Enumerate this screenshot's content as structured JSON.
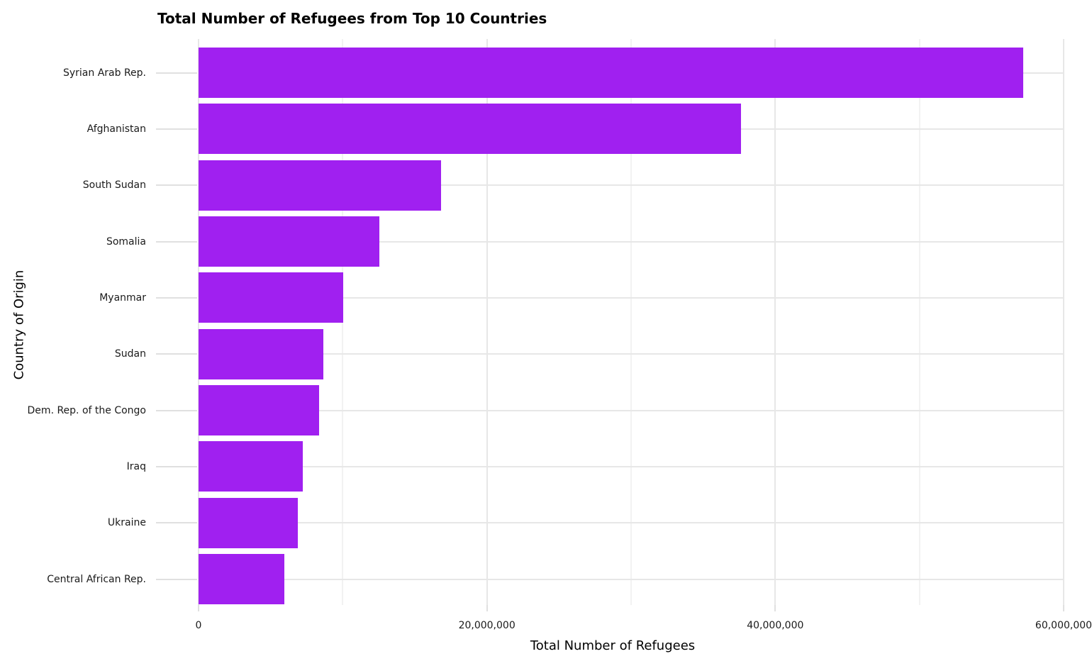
{
  "chart_data": {
    "type": "bar",
    "orientation": "horizontal",
    "title": "Total Number of Refugees from Top 10 Countries",
    "xlabel": "Total Number of Refugees",
    "ylabel": "Country of Origin",
    "categories": [
      "Syrian Arab Rep.",
      "Afghanistan",
      "South Sudan",
      "Somalia",
      "Myanmar",
      "Sudan",
      "Dem. Rep. of the Congo",
      "Iraq",
      "Ukraine",
      "Central African Rep."
    ],
    "values": [
      57200000,
      37600000,
      16800000,
      12550000,
      10050000,
      8650000,
      8350000,
      7250000,
      6900000,
      5950000
    ],
    "xlim": [
      0,
      60000000
    ],
    "x_ticks": {
      "values": [
        0,
        20000000,
        40000000,
        60000000
      ],
      "labels": [
        "0",
        "20,000,000",
        "40,000,000",
        "60,000,000"
      ]
    },
    "x_minor_gridlines": [
      10000000,
      30000000,
      50000000
    ],
    "bar_color": "#A020F0",
    "grid_major_color": "#E7E7E7",
    "grid_minor_color": "#F2F2F2",
    "axis_tick_color": "#E0E0E0",
    "grid": true,
    "legend": false
  }
}
